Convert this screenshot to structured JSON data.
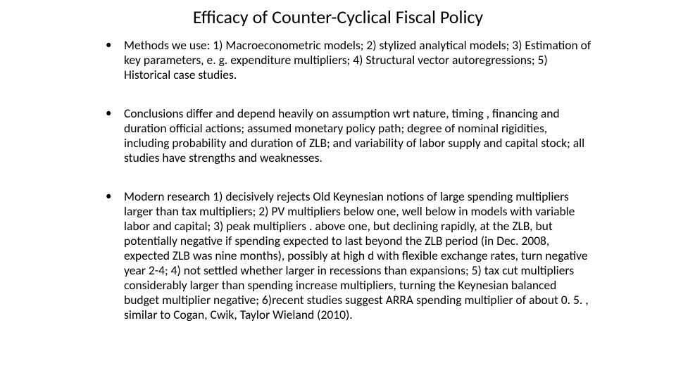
{
  "title": "Efficacy of Counter-Cyclical Fiscal Policy",
  "bullets": {
    "b1": "Methods we use: 1) Macroeconometric models; 2) stylized analytical models;            3) Estimation of key parameters, e. g. expenditure multipliers;                    4) Structural vector autoregressions; 5) Historical case studies.",
    "b2": "Conclusions differ and depend heavily on assumption wrt nature, timing , financing and duration official actions; assumed monetary policy path; degree of nominal rigidities, including probability and duration of ZLB; and variability of labor supply and capital stock; all studies have strengths and weaknesses.",
    "b3": "Modern research 1) decisively rejects Old Keynesian notions of large spending multipliers larger than tax multipliers; 2) PV multipliers below one, well below in models with variable labor and capital; 3) peak multipliers . above one, but declining rapidly, at the ZLB, but potentially negative if spending expected to last beyond the ZLB period (in Dec. 2008, expected ZLB was nine months), possibly at high d with flexible exchange rates, turn negative year 2-4; 4) not settled whether larger in recessions than expansions; 5) tax cut multipliers considerably larger than spending increase multipliers, turning the Keynesian balanced budget multiplier negative; 6)recent studies suggest ARRA spending multiplier of about 0. 5. , similar to Cogan, Cwik, Taylor Wieland (2010)."
  },
  "colors": {
    "background": "#ffffff",
    "text": "#000000"
  },
  "typography": {
    "title_fontsize": 26,
    "body_fontsize": 17.5,
    "font_family": "Calibri"
  }
}
